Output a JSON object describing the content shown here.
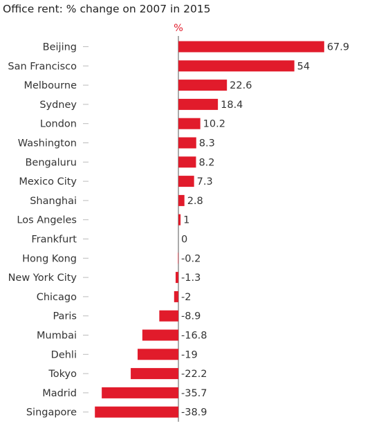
{
  "title": "Office rent: % change on 2007 in 2015",
  "colors": {
    "bar": "#e11b2b",
    "axis": "#555555",
    "tick": "#bbbbbb",
    "text": "#333333"
  },
  "chart_data": {
    "type": "bar",
    "orientation": "horizontal",
    "title": "Office rent: % change on 2007 in 2015",
    "unit_label": "%",
    "categories": [
      "Beijing",
      "San Francisco",
      "Melbourne",
      "Sydney",
      "London",
      "Washington",
      "Bengaluru",
      "Mexico City",
      "Shanghai",
      "Los Angeles",
      "Frankfurt",
      "Hong Kong",
      "New York City",
      "Chicago",
      "Paris",
      "Mumbai",
      "Dehli",
      "Tokyo",
      "Madrid",
      "Singapore"
    ],
    "values": [
      67.9,
      54,
      22.6,
      18.4,
      10.2,
      8.3,
      8.2,
      7.3,
      2.8,
      1,
      0,
      -0.2,
      -1.3,
      -2,
      -8.9,
      -16.8,
      -19,
      -22.2,
      -35.7,
      -38.9
    ],
    "value_labels": [
      "67.9",
      "54",
      "22.6",
      "18.4",
      "10.2",
      "8.3",
      "8.2",
      "7.3",
      "2.8",
      "1",
      "0",
      "-0.2",
      "-1.3",
      "-2",
      "-8.9",
      "-16.8",
      "-19",
      "-22.2",
      "-35.7",
      "-38.9"
    ],
    "xlim": [
      -40,
      70
    ],
    "grid": false,
    "legend": "none"
  }
}
